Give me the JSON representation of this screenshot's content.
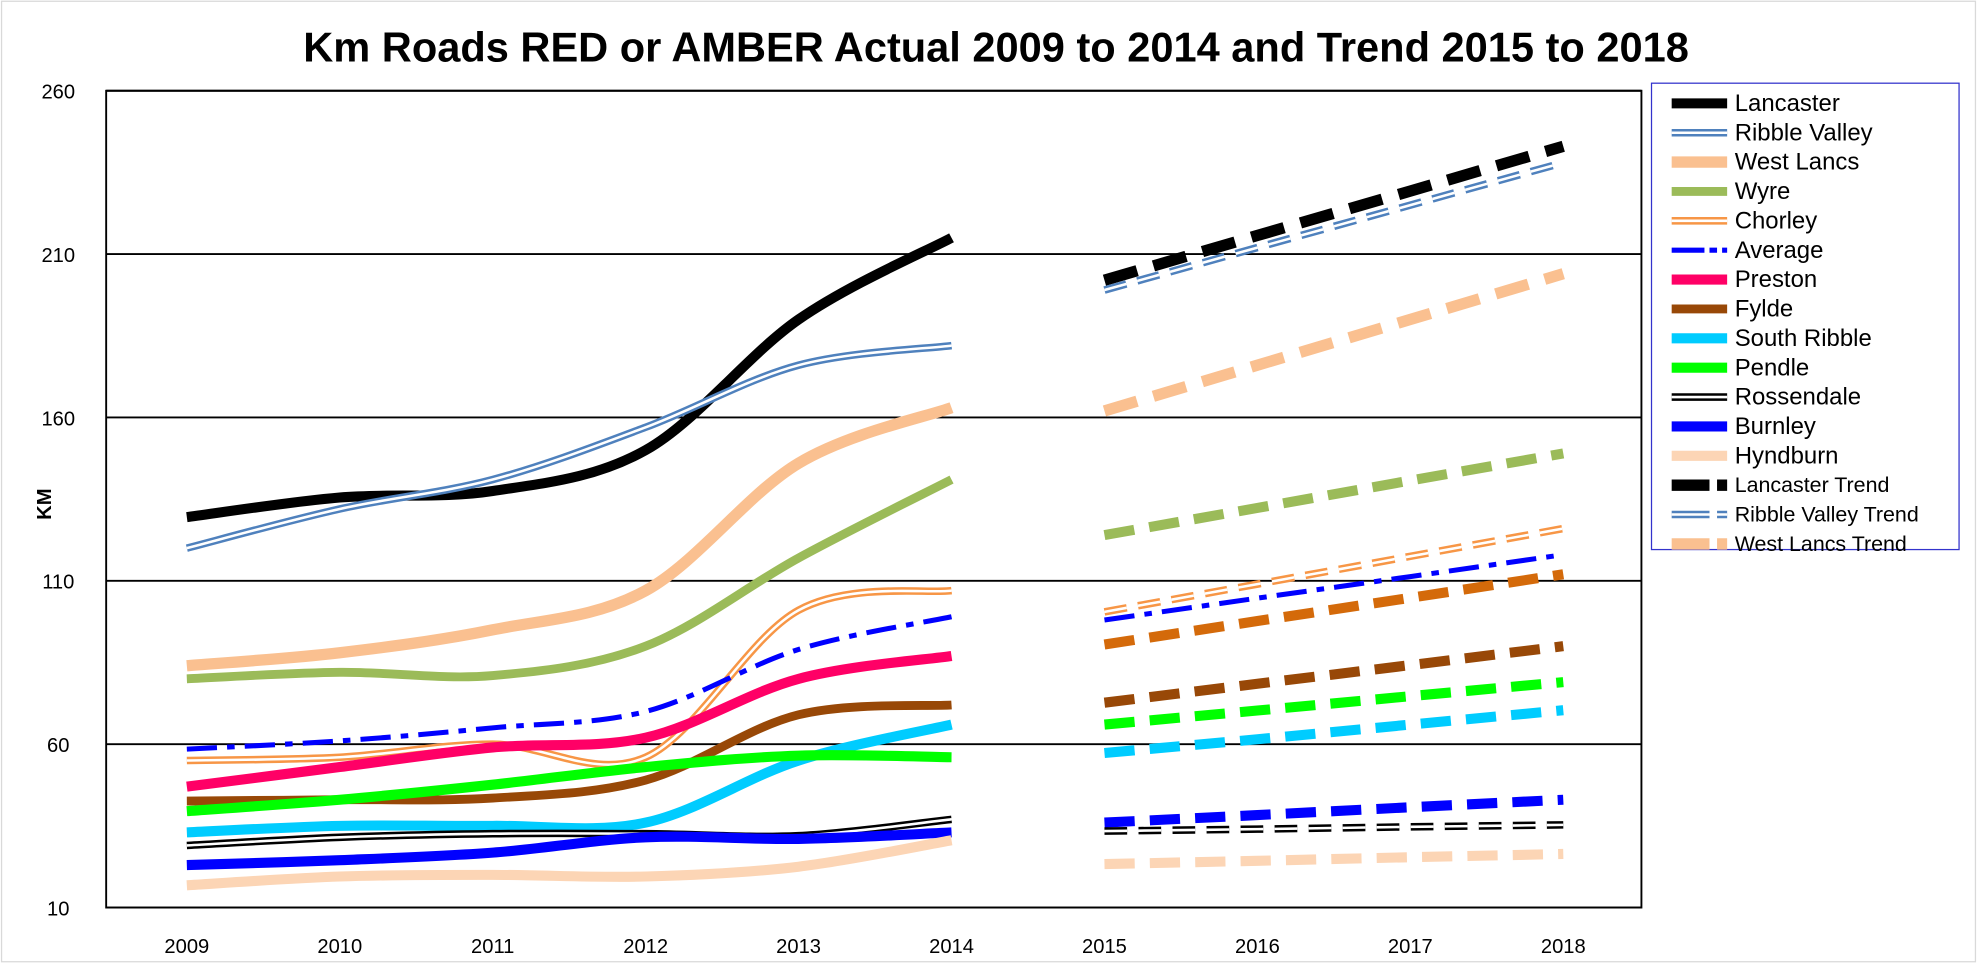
{
  "chart_data": {
    "type": "line",
    "title": "Km Roads RED or AMBER Actual 2009 to 2014 and Trend 2015 to 2018",
    "ylabel": "KM",
    "categories": [
      "2009",
      "2010",
      "2011",
      "2012",
      "2013",
      "2014",
      "2015",
      "2016",
      "2017",
      "2018"
    ],
    "ylim": [
      10,
      260
    ],
    "yticks": [
      10,
      60,
      110,
      160,
      210,
      260
    ],
    "grid": true,
    "legend": "right",
    "series": [
      {
        "name": "Lancaster",
        "color": "#000000",
        "width": 8,
        "line": "solid",
        "values": [
          129.5,
          135.5,
          137.5,
          150,
          190,
          215,
          null,
          null,
          null,
          null
        ]
      },
      {
        "name": "Ribble Valley",
        "color": "#4f81bd",
        "width": 6,
        "line": "double",
        "values": [
          120,
          132,
          141,
          157,
          176,
          182,
          null,
          null,
          null,
          null
        ]
      },
      {
        "name": "West Lancs",
        "color": "#fac090",
        "width": 9,
        "line": "solid",
        "values": [
          84,
          88,
          95,
          107,
          146,
          163,
          null,
          null,
          null,
          null
        ]
      },
      {
        "name": "Wyre",
        "color": "#9bbb59",
        "width": 7,
        "line": "solid",
        "values": [
          80,
          82,
          81,
          90,
          117,
          141,
          null,
          null,
          null,
          null
        ]
      },
      {
        "name": "Chorley",
        "color": "#f79646",
        "width": 6,
        "line": "double",
        "values": [
          55,
          56,
          60,
          56,
          101,
          107,
          null,
          null,
          null,
          null
        ]
      },
      {
        "name": "Average",
        "color": "#0000ff",
        "width": 4,
        "line": "dashdot",
        "values": [
          58.5,
          61,
          65,
          70,
          89,
          99,
          null,
          null,
          null,
          null
        ]
      },
      {
        "name": "Preston",
        "color": "#ff0066",
        "width": 8,
        "line": "solid",
        "values": [
          47,
          53,
          59,
          62,
          80,
          87,
          null,
          null,
          null,
          null
        ]
      },
      {
        "name": "Fylde",
        "color": "#984807",
        "width": 7,
        "line": "solid",
        "values": [
          42.6,
          43,
          43.5,
          49,
          69,
          72,
          null,
          null,
          null,
          null
        ]
      },
      {
        "name": "South Ribble",
        "color": "#00ccff",
        "width": 8,
        "line": "solid",
        "values": [
          33,
          35,
          35,
          36,
          55,
          66,
          null,
          null,
          null,
          null
        ]
      },
      {
        "name": "Pendle",
        "color": "#00ff00",
        "width": 8,
        "line": "solid",
        "values": [
          39.5,
          43,
          47.6,
          53,
          56.5,
          56,
          null,
          null,
          null,
          null
        ]
      },
      {
        "name": "Rossendale",
        "color": "#000000",
        "width": 6,
        "line": "double",
        "values": [
          29,
          31.5,
          32.6,
          32.6,
          32,
          37,
          null,
          null,
          null,
          null
        ]
      },
      {
        "name": "Burnley",
        "color": "#0000ff",
        "width": 8,
        "line": "solid",
        "values": [
          23,
          24.5,
          26.8,
          31.5,
          31,
          33,
          null,
          null,
          null,
          null
        ]
      },
      {
        "name": "Hyndburn",
        "color": "#fcd5b5",
        "width": 8,
        "line": "solid",
        "values": [
          16.8,
          19.5,
          20,
          19.5,
          22.5,
          30.6,
          null,
          null,
          null,
          null
        ]
      },
      {
        "name": "Lancaster Trend",
        "color": "#000000",
        "width": 9,
        "line": "dash",
        "values": [
          null,
          null,
          null,
          null,
          null,
          null,
          202,
          215.7,
          229.3,
          243
        ]
      },
      {
        "name": "Ribble Valley Trend",
        "color": "#4f81bd",
        "width": 6,
        "line": "doubledash",
        "values": [
          null,
          null,
          null,
          null,
          null,
          null,
          199,
          212,
          225,
          238
        ]
      },
      {
        "name": "West Lancs Trend",
        "color": "#fac090",
        "width": 9,
        "line": "dash",
        "values": [
          null,
          null,
          null,
          null,
          null,
          null,
          162,
          176,
          190,
          204
        ]
      },
      {
        "color": "#9bbb59",
        "width": 8,
        "line": "dash",
        "values": [
          null,
          null,
          null,
          null,
          null,
          null,
          124,
          132.3,
          140.7,
          149
        ]
      },
      {
        "color": "#f79646",
        "width": 6,
        "line": "doubledash",
        "values": [
          null,
          null,
          null,
          null,
          null,
          null,
          100.5,
          109,
          117.5,
          126
        ]
      },
      {
        "color": "#0000ff",
        "width": 4,
        "line": "dashdot",
        "values": [
          null,
          null,
          null,
          null,
          null,
          null,
          98,
          104.7,
          111.3,
          118
        ]
      },
      {
        "color": "#d46a0a",
        "width": 8,
        "line": "dash",
        "values": [
          null,
          null,
          null,
          null,
          null,
          null,
          90.5,
          97.7,
          104.8,
          112
        ]
      },
      {
        "color": "#984807",
        "width": 8,
        "line": "dash",
        "values": [
          null,
          null,
          null,
          null,
          null,
          null,
          72.7,
          78.5,
          84.2,
          90
        ]
      },
      {
        "color": "#00ff00",
        "width": 8,
        "line": "dash",
        "values": [
          null,
          null,
          null,
          null,
          null,
          null,
          66,
          70.3,
          74.7,
          79
        ]
      },
      {
        "color": "#00ccff",
        "width": 8,
        "line": "dash",
        "values": [
          null,
          null,
          null,
          null,
          null,
          null,
          57.3,
          61.5,
          66,
          70.4
        ]
      },
      {
        "color": "#0000ff",
        "width": 8,
        "line": "dash",
        "values": [
          null,
          null,
          null,
          null,
          null,
          null,
          36,
          38.3,
          40.7,
          43
        ]
      },
      {
        "color": "#000000",
        "width": 6,
        "line": "doubledash",
        "values": [
          null,
          null,
          null,
          null,
          null,
          null,
          33.4,
          34,
          34.7,
          35.3
        ]
      },
      {
        "color": "#fcd5b5",
        "width": 8,
        "line": "dash",
        "values": [
          null,
          null,
          null,
          null,
          null,
          null,
          23.3,
          24.3,
          25.4,
          26.4
        ]
      }
    ]
  }
}
